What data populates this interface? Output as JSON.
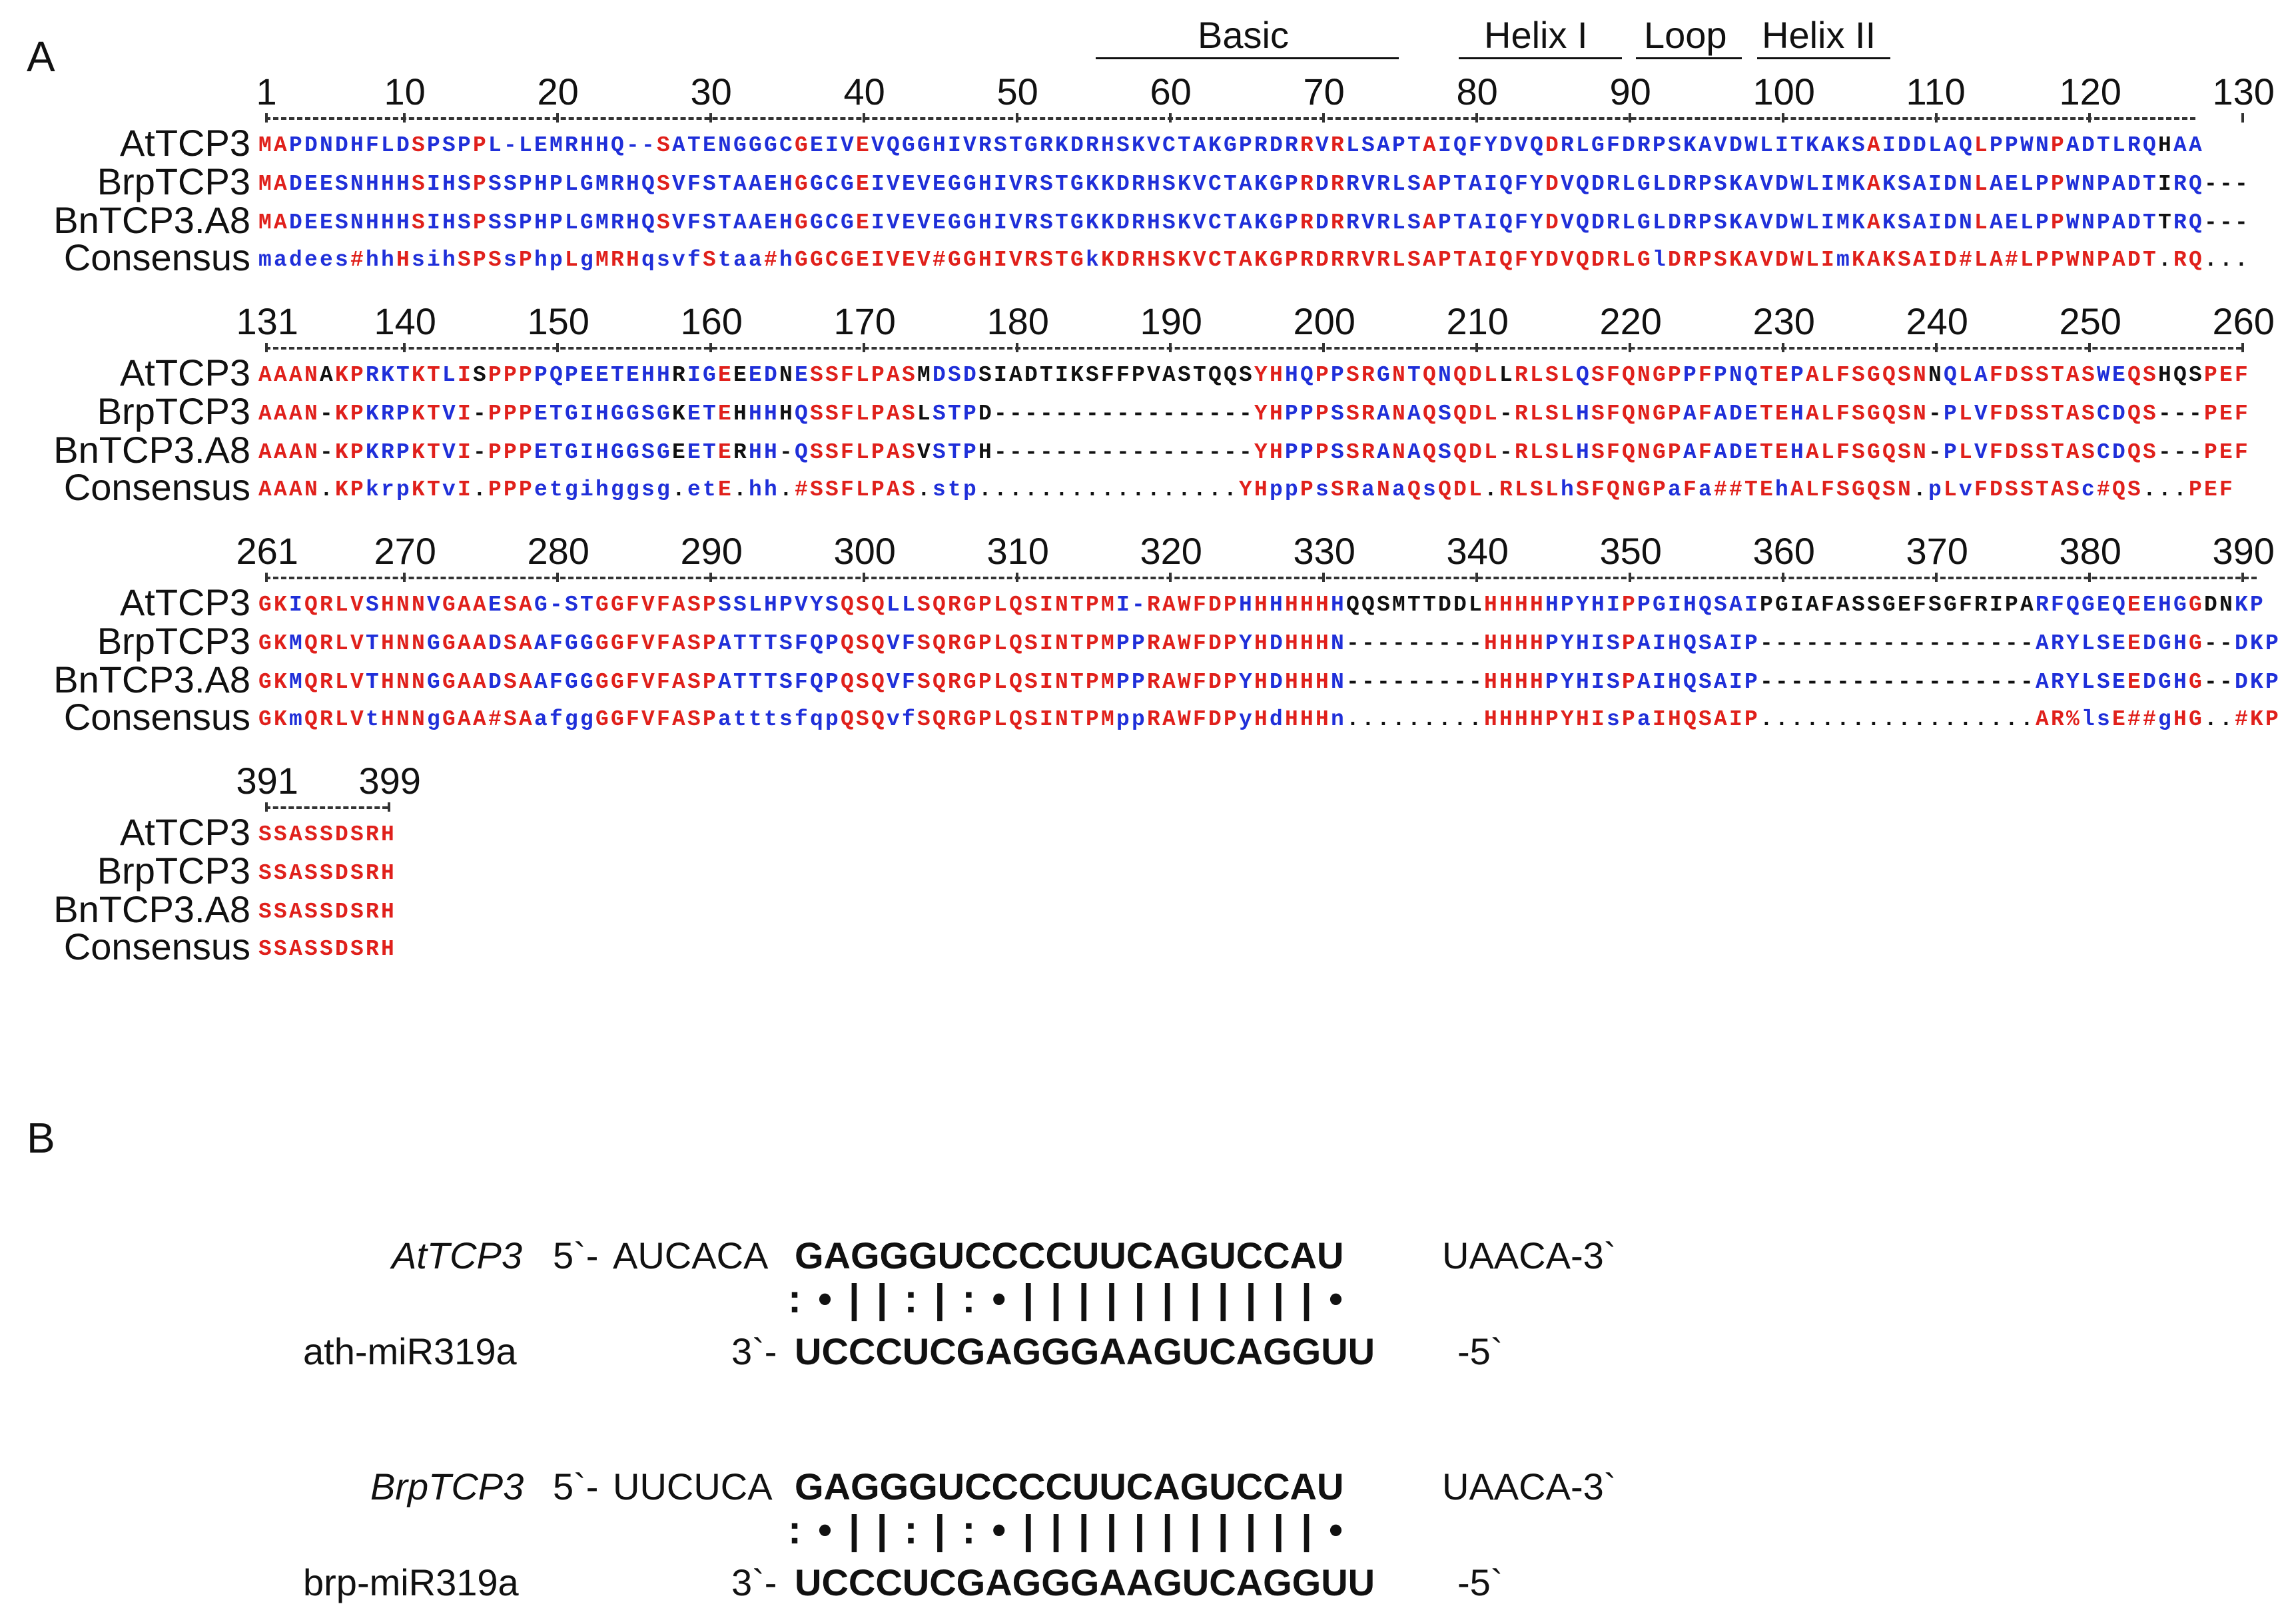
{
  "panelA": {
    "label": "A",
    "domains": [
      {
        "name": "Basic"
      },
      {
        "name": "Helix I"
      },
      {
        "name": "Loop"
      },
      {
        "name": "Helix II"
      }
    ],
    "blocks": [
      {
        "ruler": [
          "1",
          "10",
          "20",
          "30",
          "40",
          "50",
          "60",
          "70",
          "80",
          "90",
          "100",
          "110",
          "120",
          "130"
        ],
        "rows": [
          {
            "name": "AtTCP3",
            "seq": "MAPDNDHFLDSPSPPL-LEMRHHQ--SATENGGGCGEIVEVQGGHIVRSTGRKDRHSKVCTAKGPRDRRVRLSAPTAIQFYDVQDRLGFDRPSKAVDWLITKAKSAIDDLAQLPPWNPADTLRQHAA"
          },
          {
            "name": "BrpTCP3",
            "seq": "MADEESNHHHSIHSPSSPHPLGMRHQSVFSTAAEHGGCGEIVEVEGGHIVRSTGKKDRHSKVCTAKGPRDRRVRLSAPTAIQFYDVQDRLGLDRPSKAVDWLIMKAKSAIDNLAELPPWNPADTIRQ---"
          },
          {
            "name": "BnTCP3.A8",
            "seq": "MADEESNHHHSIHSPSSPHPLGMRHQSVFSTAAEHGGCGEIVEVEGGHIVRSTGKKDRHSKVCTAKGPRDRRVRLSAPTAIQFYDVQDRLGLDRPSKAVDWLIMKAKSAIDNLAELPPWNPADTTRQ---"
          },
          {
            "name": "Consensus",
            "seq": "madees#hhHsihSPSsPhpLgMRHqsvfStaa#hGGCGEIVEV#GGHIVRSTGkKDRHSKVCTAKGPRDRRVRLSAPTAIQFYDVQDRLGlDRPSKAVDWLImKAKSAID#LA#LPPWNPADT.RQ..."
          }
        ]
      },
      {
        "ruler": [
          "131",
          "140",
          "150",
          "160",
          "170",
          "180",
          "190",
          "200",
          "210",
          "220",
          "230",
          "240",
          "250",
          "260"
        ],
        "rows": [
          {
            "name": "AtTCP3",
            "seq": "AAANAKPRKTKTLISPPPPQPEETEHHRIGEEEDNESSFLPASMDSDSIADTIKSFFPVASTQQSYHHQPPSRGNTQNQDLLRLSLQSFQNGPPFPNQTEPALFSGQSNNQLAFDSSTASWEQSHQSPEF"
          },
          {
            "name": "BrpTCP3",
            "seq": "AAAN-KPKRPKTVI-PPPETGIHGGSGKETEHHHHQSSFLPASLSTPD-----------------YHPPPSSRANAQSQDL-RLSLHSFQNGPAFADETEHALFSGQSN-PLVFDSSTASCDQS---PEF"
          },
          {
            "name": "BnTCP3.A8",
            "seq": "AAAN-KPKRPKTVI-PPPETGIHGGSGEETERHH-QSSFLPASVSTPH-----------------YHPPPSSRANAQSQDL-RLSLHSFQNGPAFADETEHALFSGQSN-PLVFDSSTASCDQS---PEF"
          },
          {
            "name": "Consensus",
            "seq": "AAAN.KPkrpKTvI.PPPetgihggsg.etE.hh.#SSFLPAS.stp.................YHppPsSRaNaQsQDL.RLSLhSFQNGPaFa##TEhALFSGQSN.pLvFDSSTASc#QS...PEF"
          }
        ]
      },
      {
        "ruler": [
          "261",
          "270",
          "280",
          "290",
          "300",
          "310",
          "320",
          "330",
          "340",
          "350",
          "360",
          "370",
          "380",
          "390"
        ],
        "rows": [
          {
            "name": "AtTCP3",
            "seq": "GKIQRLVSHNNVGAAESAG-STGGFVFASPSSLHPVYSQSQLLSQRGPLQSINTPMI-RAWFDPHHHHHHHQQSMTTDDLHHHHHPYHIPPGIHQSAIPGIAFASSGEFSGFRIPARFQGEQEEHGGDNKP"
          },
          {
            "name": "BrpTCP3",
            "seq": "GKMQRLVTHNNGGAADSAAFGGGGFVFASPATTTSFQPQSQVFSQRGPLQSINTPMPPRAWFDPYHDHHHN---------HHHHPYHISPAIHQSAIP------------------ARYLSEEDGHG--DKP"
          },
          {
            "name": "BnTCP3.A8",
            "seq": "GKMQRLVTHNNGGAADSAAFGGGGFVFASPATTTSFQPQSQVFSQRGPLQSINTPMPPRAWFDPYHDHHHN---------HHHHPYHISPAIHQSAIP------------------ARYLSEEDGHG--DKP"
          },
          {
            "name": "Consensus",
            "seq": "GKmQRLVtHNNgGAA#SAafggGGFVFASPatttsfqpQSQvfSQRGPLQSINTPMppRAWFDPyHdHHHn.........HHHHPYHIsPaIHQSAIP..................AR%lsE##gHG..#KP"
          }
        ]
      },
      {
        "ruler": [
          "391",
          "399"
        ],
        "rows": [
          {
            "name": "AtTCP3",
            "seq": "SSASSDSRH"
          },
          {
            "name": "BrpTCP3",
            "seq": "SSASSDSRH"
          },
          {
            "name": "BnTCP3.A8",
            "seq": "SSASSDSRH"
          },
          {
            "name": "Consensus",
            "seq": "SSASSDSRH"
          }
        ]
      }
    ]
  },
  "panelB": {
    "label": "B",
    "pairs": [
      {
        "target_name": "AtTCP3",
        "target_prefix": "5`-",
        "target_5flank": "AUCACA",
        "target_core": "GAGGGUCCCCUUCAGUCCAU",
        "target_3flank": "UAACA-3`",
        "pairing": ":•||:|:•|||||||||||•",
        "mirna_name": "ath-miR319a",
        "mirna_prefix": "3`-",
        "mirna_seq": "UCCCUCGAGGGAAGUCAGGUU",
        "mirna_suffix": "-5`"
      },
      {
        "target_name": "BrpTCP3",
        "target_prefix": "5`-",
        "target_5flank": "UUCUCA",
        "target_core": "GAGGGUCCCCUUCAGUCCAU",
        "target_3flank": "UAACA-3`",
        "pairing": ":•||:|:•|||||||||||•",
        "mirna_name": "brp-miR319a",
        "mirna_prefix": "3`-",
        "mirna_seq": "UCCCUCGAGGGAAGUCAGGUU",
        "mirna_suffix": "-5`"
      }
    ]
  },
  "colors": {
    "identical": "#e0201b",
    "conserved": "#1f2fd9",
    "other": "#111111"
  }
}
